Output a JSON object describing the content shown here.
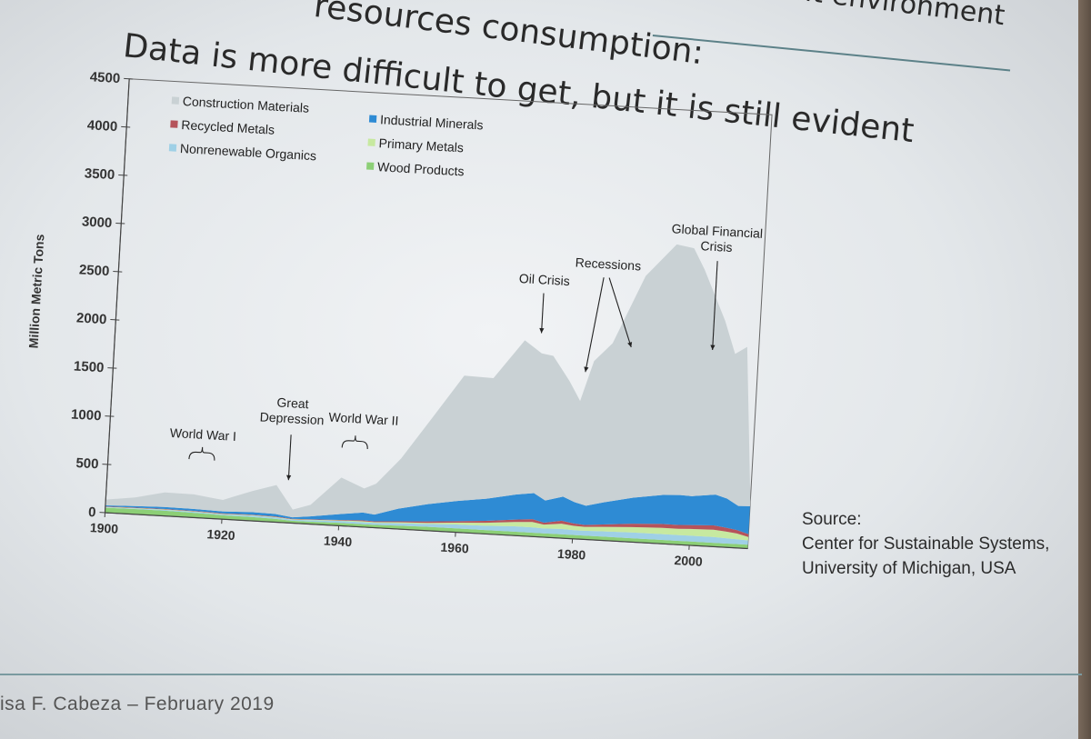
{
  "slide": {
    "title_line1": "resources consumption:",
    "title_line2": "Data is more difficult to get, but it is still evident",
    "title_partial": "built environment",
    "source_label": "Source:",
    "source_line1": "Center for Sustainable Systems,",
    "source_line2": "University of Michigan, USA",
    "footer": "isa F. Cabeza – February 2019"
  },
  "colors": {
    "construction": "#c9d1d4",
    "industrial": "#2e8bd4",
    "recycled": "#b5535b",
    "primary": "#c7e9a0",
    "nonrenewable": "#9fd0e6",
    "wood": "#8ccf76"
  },
  "chart_data": {
    "type": "area",
    "stacked": true,
    "title": "",
    "xlabel": "",
    "ylabel": "Million Metric Tons",
    "xlim": [
      1900,
      2010
    ],
    "ylim": [
      0,
      4500
    ],
    "x_ticks": [
      1900,
      1920,
      1940,
      1960,
      1980,
      2000
    ],
    "y_ticks": [
      0,
      500,
      1000,
      1500,
      2000,
      2500,
      3000,
      3500,
      4000,
      4500
    ],
    "x": [
      1900,
      1905,
      1910,
      1915,
      1918,
      1920,
      1925,
      1929,
      1932,
      1935,
      1940,
      1944,
      1946,
      1950,
      1955,
      1960,
      1965,
      1970,
      1973,
      1975,
      1978,
      1980,
      1982,
      1985,
      1990,
      1995,
      1998,
      2000,
      2004,
      2006,
      2008,
      2010
    ],
    "series": [
      {
        "name": "Wood Products",
        "color_key": "wood",
        "values": [
          50,
          55,
          55,
          50,
          45,
          40,
          40,
          35,
          25,
          25,
          30,
          30,
          30,
          35,
          40,
          40,
          40,
          40,
          40,
          40,
          40,
          40,
          40,
          40,
          40,
          40,
          40,
          40,
          40,
          40,
          40,
          40
        ]
      },
      {
        "name": "Nonrenewable Organics",
        "color_key": "nonrenewable",
        "values": [
          5,
          5,
          8,
          10,
          10,
          10,
          15,
          15,
          10,
          15,
          20,
          20,
          20,
          25,
          30,
          40,
          45,
          55,
          55,
          50,
          55,
          50,
          50,
          55,
          60,
          60,
          60,
          60,
          60,
          55,
          50,
          45
        ]
      },
      {
        "name": "Primary Metals",
        "color_key": "primary",
        "values": [
          5,
          5,
          5,
          5,
          5,
          5,
          5,
          5,
          5,
          5,
          5,
          10,
          8,
          10,
          10,
          20,
          30,
          45,
          55,
          40,
          55,
          45,
          40,
          45,
          55,
          65,
          65,
          70,
          75,
          70,
          60,
          35
        ]
      },
      {
        "name": "Recycled Metals",
        "color_key": "recycled",
        "values": [
          5,
          5,
          5,
          5,
          5,
          5,
          5,
          5,
          5,
          5,
          5,
          10,
          8,
          10,
          15,
          15,
          20,
          25,
          30,
          20,
          30,
          25,
          20,
          25,
          35,
          40,
          40,
          40,
          45,
          40,
          35,
          30
        ]
      },
      {
        "name": "Industrial Minerals",
        "color_key": "industrial",
        "values": [
          10,
          15,
          20,
          20,
          20,
          20,
          25,
          25,
          15,
          30,
          60,
          80,
          70,
          130,
          180,
          210,
          230,
          260,
          270,
          230,
          250,
          220,
          200,
          230,
          270,
          300,
          310,
          300,
          320,
          300,
          250,
          290
        ]
      },
      {
        "name": "Construction Materials",
        "color_key": "construction",
        "values": [
          60,
          90,
          150,
          150,
          130,
          120,
          220,
          300,
          80,
          120,
          380,
          250,
          320,
          520,
          900,
          1300,
          1250,
          1600,
          1450,
          1500,
          1200,
          1050,
          1500,
          1650,
          2300,
          2600,
          2560,
          2350,
          1800,
          1500,
          1650,
          50
        ]
      }
    ],
    "legend": [
      {
        "label": "Construction Materials",
        "color_key": "construction"
      },
      {
        "label": "Industrial Minerals",
        "color_key": "industrial"
      },
      {
        "label": "Recycled Metals",
        "color_key": "recycled"
      },
      {
        "label": "Primary Metals",
        "color_key": "primary"
      },
      {
        "label": "Nonrenewable Organics",
        "color_key": "nonrenewable"
      },
      {
        "label": "Wood Products",
        "color_key": "wood"
      }
    ],
    "annotations": [
      {
        "label": "World War I",
        "year": 1916,
        "marker": "brace"
      },
      {
        "label": "Great Depression",
        "year": 1931,
        "marker": "arrow"
      },
      {
        "label": "World War II",
        "year": 1942,
        "marker": "brace"
      },
      {
        "label": "Oil Crisis",
        "year": 1974,
        "marker": "arrow"
      },
      {
        "label": "Recessions",
        "year": 1981,
        "marker": "arrow",
        "arrows_to": [
          1980,
          1991
        ]
      },
      {
        "label": "Global Financial Crisis",
        "year": 2008,
        "marker": "arrow"
      }
    ]
  }
}
